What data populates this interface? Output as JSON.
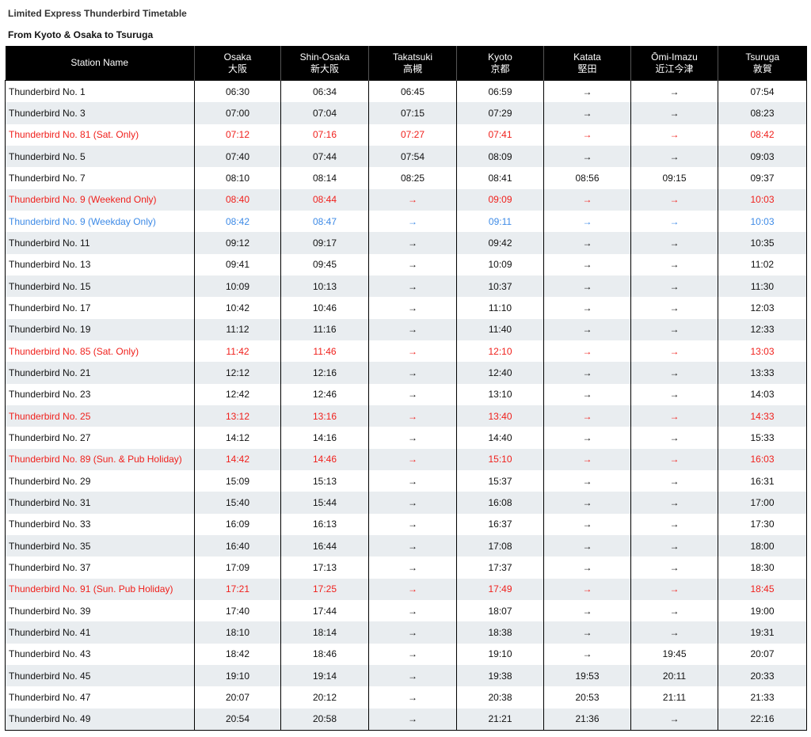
{
  "header": {
    "title": "Limited Express Thunderbird Timetable",
    "subtitle": "From Kyoto & Osaka to Tsuruga"
  },
  "table": {
    "header": [
      {
        "en": "Station Name"
      },
      {
        "en": "Osaka",
        "ja": "大阪"
      },
      {
        "en": "Shin-Osaka",
        "ja": "新大阪"
      },
      {
        "en": "Takatsuki",
        "ja": "高槻"
      },
      {
        "en": "Kyoto",
        "ja": "京都"
      },
      {
        "en": "Katata",
        "ja": "堅田"
      },
      {
        "en": "Ōmi-Imazu",
        "ja": "近江今津"
      },
      {
        "en": "Tsuruga",
        "ja": "敦賀"
      }
    ],
    "rows": [
      {
        "cells": [
          "Thunderbird No. 1",
          "06:30",
          "06:34",
          "06:45",
          "06:59",
          "→",
          "→",
          "07:54"
        ]
      },
      {
        "cells": [
          "Thunderbird No. 3",
          "07:00",
          "07:04",
          "07:15",
          "07:29",
          "→",
          "→",
          "08:23"
        ]
      },
      {
        "cells": [
          "Thunderbird No. 81 (Sat. Only)",
          "07:12",
          "07:16",
          "07:27",
          "07:41",
          "→",
          "→",
          "08:42"
        ],
        "color": "#f0201c"
      },
      {
        "cells": [
          "Thunderbird No. 5",
          "07:40",
          "07:44",
          "07:54",
          "08:09",
          "→",
          "→",
          "09:03"
        ]
      },
      {
        "cells": [
          "Thunderbird No. 7",
          "08:10",
          "08:14",
          "08:25",
          "08:41",
          "08:56",
          "09:15",
          "09:37"
        ]
      },
      {
        "cells": [
          "Thunderbird No. 9 (Weekend Only)",
          "08:40",
          "08:44",
          "→",
          "09:09",
          "→",
          "→",
          "10:03"
        ],
        "color": "#f0201c"
      },
      {
        "cells": [
          "Thunderbird No. 9 (Weekday Only)",
          "08:42",
          "08:47",
          "→",
          "09:11",
          "→",
          "→",
          "10:03"
        ],
        "color": "#3d8ae6"
      },
      {
        "cells": [
          "Thunderbird No. 11",
          "09:12",
          "09:17",
          "→",
          "09:42",
          "→",
          "→",
          "10:35"
        ]
      },
      {
        "cells": [
          "Thunderbird No. 13",
          "09:41",
          "09:45",
          "→",
          "10:09",
          "→",
          "→",
          "11:02"
        ]
      },
      {
        "cells": [
          "Thunderbird No. 15",
          "10:09",
          "10:13",
          "→",
          "10:37",
          "→",
          "→",
          "11:30"
        ]
      },
      {
        "cells": [
          "Thunderbird No. 17",
          "10:42",
          "10:46",
          "→",
          "11:10",
          "→",
          "→",
          "12:03"
        ]
      },
      {
        "cells": [
          "Thunderbird No. 19",
          "11:12",
          "11:16",
          "→",
          "11:40",
          "→",
          "→",
          "12:33"
        ]
      },
      {
        "cells": [
          "Thunderbird No. 85 (Sat. Only)",
          "11:42",
          "11:46",
          "→",
          "12:10",
          "→",
          "→",
          "13:03"
        ],
        "color": "#f0201c"
      },
      {
        "cells": [
          "Thunderbird No. 21",
          "12:12",
          "12:16",
          "→",
          "12:40",
          "→",
          "→",
          "13:33"
        ]
      },
      {
        "cells": [
          "Thunderbird No. 23",
          "12:42",
          "12:46",
          "→",
          "13:10",
          "→",
          "→",
          "14:03"
        ]
      },
      {
        "cells": [
          "Thunderbird No. 25",
          "13:12",
          "13:16",
          "→",
          "13:40",
          "→",
          "→",
          "14:33"
        ],
        "color": "#f0201c"
      },
      {
        "cells": [
          "Thunderbird No. 27",
          "14:12",
          "14:16",
          "→",
          "14:40",
          "→",
          "→",
          "15:33"
        ]
      },
      {
        "cells": [
          "Thunderbird No. 89 (Sun. & Pub Holiday)",
          "14:42",
          "14:46",
          "→",
          "15:10",
          "→",
          "→",
          "16:03"
        ],
        "color": "#f0201c"
      },
      {
        "cells": [
          "Thunderbird No. 29",
          "15:09",
          "15:13",
          "→",
          "15:37",
          "→",
          "→",
          "16:31"
        ]
      },
      {
        "cells": [
          "Thunderbird No. 31",
          "15:40",
          "15:44",
          "→",
          "16:08",
          "→",
          "→",
          "17:00"
        ]
      },
      {
        "cells": [
          "Thunderbird No. 33",
          "16:09",
          "16:13",
          "→",
          "16:37",
          "→",
          "→",
          "17:30"
        ]
      },
      {
        "cells": [
          "Thunderbird No. 35",
          "16:40",
          "16:44",
          "→",
          "17:08",
          "→",
          "→",
          "18:00"
        ]
      },
      {
        "cells": [
          "Thunderbird No. 37",
          "17:09",
          "17:13",
          "→",
          "17:37",
          "→",
          "→",
          "18:30"
        ]
      },
      {
        "cells": [
          "Thunderbird No. 91 (Sun. Pub Holiday)",
          "17:21",
          "17:25",
          "→",
          "17:49",
          "→",
          "→",
          "18:45"
        ],
        "color": "#f0201c"
      },
      {
        "cells": [
          "Thunderbird No. 39",
          "17:40",
          "17:44",
          "→",
          "18:07",
          "→",
          "→",
          "19:00"
        ]
      },
      {
        "cells": [
          "Thunderbird No. 41",
          "18:10",
          "18:14",
          "→",
          "18:38",
          "→",
          "→",
          "19:31"
        ]
      },
      {
        "cells": [
          "Thunderbird No. 43",
          "18:42",
          "18:46",
          "→",
          "19:10",
          "→",
          "19:45",
          "20:07"
        ]
      },
      {
        "cells": [
          "Thunderbird No. 45",
          "19:10",
          "19:14",
          "→",
          "19:38",
          "19:53",
          "20:11",
          "20:33"
        ]
      },
      {
        "cells": [
          "Thunderbird No. 47",
          "20:07",
          "20:12",
          "→",
          "20:38",
          "20:53",
          "21:11",
          "21:33"
        ]
      },
      {
        "cells": [
          "Thunderbird No. 49",
          "20:54",
          "20:58",
          "→",
          "21:21",
          "21:36",
          "→",
          "22:16"
        ]
      }
    ]
  }
}
